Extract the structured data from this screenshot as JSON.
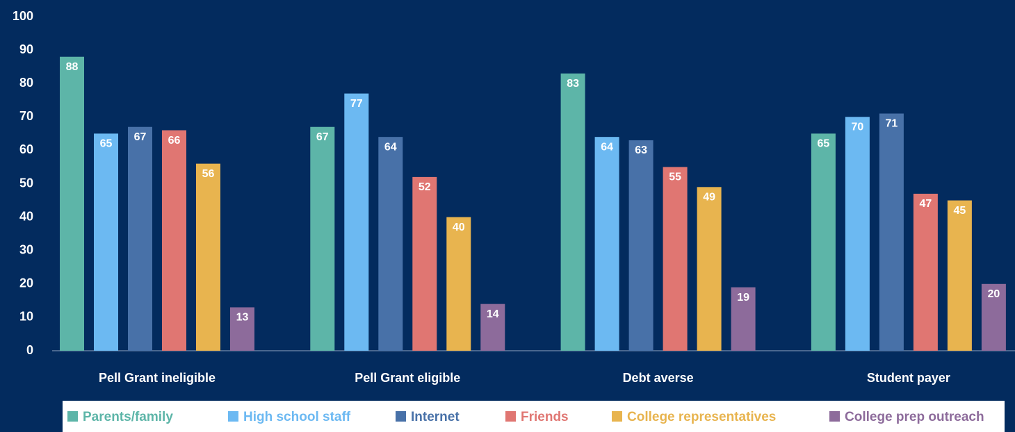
{
  "chart_data": {
    "type": "bar",
    "categories": [
      "Pell Grant ineligible",
      "Pell Grant eligible",
      "Debt averse",
      "Student payer"
    ],
    "series": [
      {
        "name": "Parents/family",
        "color": "#5db5a8",
        "values": [
          88,
          67,
          83,
          65
        ]
      },
      {
        "name": "High school staff",
        "color": "#6cb9f2",
        "values": [
          65,
          77,
          64,
          70
        ]
      },
      {
        "name": "Internet",
        "color": "#4871a8",
        "values": [
          67,
          64,
          63,
          71
        ]
      },
      {
        "name": "Friends",
        "color": "#e07672",
        "values": [
          66,
          52,
          55,
          47
        ]
      },
      {
        "name": "College representatives",
        "color": "#e8b44f",
        "values": [
          56,
          40,
          49,
          45
        ]
      },
      {
        "name": "College prep outreach",
        "color": "#8d6b9b",
        "values": [
          13,
          14,
          19,
          20
        ]
      }
    ],
    "ylim": [
      0,
      100
    ],
    "yticks": [
      0,
      10,
      20,
      30,
      40,
      50,
      60,
      70,
      80,
      90,
      100
    ],
    "legend": "bottom"
  }
}
